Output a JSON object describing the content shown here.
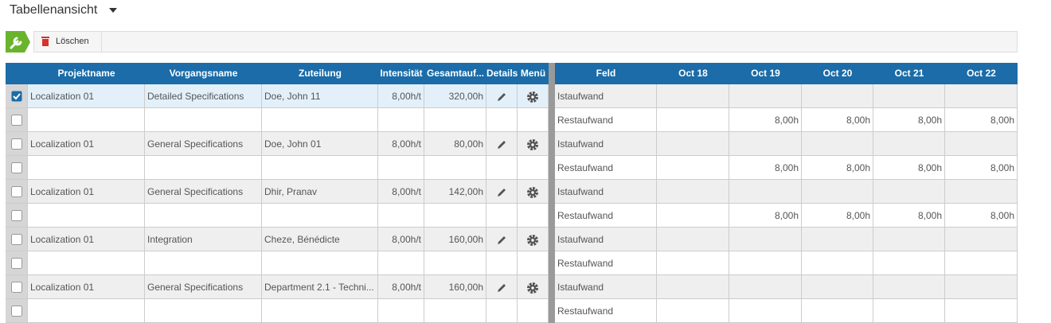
{
  "header": {
    "title": "Tabellenansicht"
  },
  "toolbar": {
    "delete_button": "Löschen"
  },
  "left_table": {
    "columns": [
      "Projektname",
      "Vorgangsname",
      "Zuteilung",
      "Intensität",
      "Gesamtauf...",
      "Details",
      "Menü"
    ],
    "groups": [
      {
        "selected": true,
        "project": "Localization 01",
        "task": "Detailed Specifications",
        "assignment": "Doe, John 11",
        "intensity": "8,00h/t",
        "total": "320,00h"
      },
      {
        "selected": false,
        "project": "Localization 01",
        "task": "General Specifications",
        "assignment": "Doe, John 01",
        "intensity": "8,00h/t",
        "total": "80,00h"
      },
      {
        "selected": false,
        "project": "Localization 01",
        "task": "General Specifications",
        "assignment": "Dhir, Pranav",
        "intensity": "8,00h/t",
        "total": "142,00h"
      },
      {
        "selected": false,
        "project": "Localization 01",
        "task": "Integration",
        "assignment": "Cheze, Bénédicte",
        "intensity": "8,00h/t",
        "total": "160,00h"
      },
      {
        "selected": false,
        "project": "Localization 01",
        "task": "General Specifications",
        "assignment": "Department 2.1 - Techni...",
        "intensity": "8,00h/t",
        "total": "160,00h"
      }
    ]
  },
  "right_table": {
    "columns": [
      "Feld",
      "Oct 18",
      "Oct 19",
      "Oct 20",
      "Oct 21",
      "Oct 22"
    ],
    "rows": [
      {
        "field": "Istaufwand",
        "cells": [
          null,
          null,
          null,
          null,
          null
        ]
      },
      {
        "field": "Restaufwand",
        "cells": [
          null,
          "8,00h",
          "8,00h",
          "8,00h",
          "8,00h"
        ]
      },
      {
        "field": "Istaufwand",
        "cells": [
          null,
          null,
          null,
          null,
          null
        ]
      },
      {
        "field": "Restaufwand",
        "cells": [
          null,
          "8,00h",
          "8,00h",
          "8,00h",
          "8,00h"
        ]
      },
      {
        "field": "Istaufwand",
        "cells": [
          null,
          null,
          null,
          null,
          null
        ]
      },
      {
        "field": "Restaufwand",
        "cells": [
          null,
          "8,00h",
          "8,00h",
          "8,00h",
          "8,00h"
        ]
      },
      {
        "field": "Istaufwand",
        "cells": [
          null,
          null,
          null,
          null,
          null
        ]
      },
      {
        "field": "Restaufwand",
        "cells": [
          null,
          null,
          null,
          null,
          null
        ]
      },
      {
        "field": "Istaufwand",
        "cells": [
          null,
          null,
          null,
          null,
          null
        ]
      },
      {
        "field": "Restaufwand",
        "cells": [
          null,
          null,
          null,
          null,
          null
        ]
      }
    ]
  }
}
